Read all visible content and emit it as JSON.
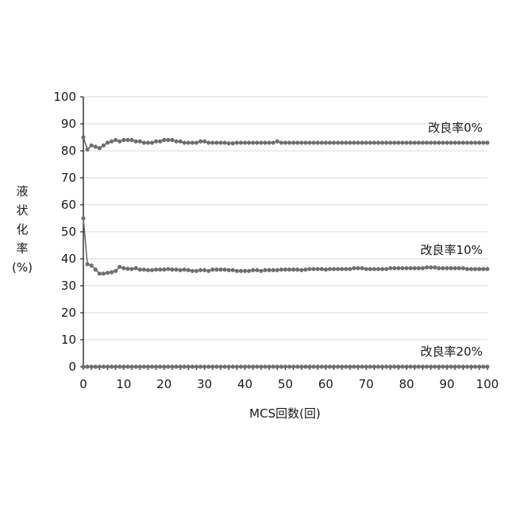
{
  "chart_data": {
    "type": "line",
    "xlabel": "MCS回数(回)",
    "ylabel": "液状化率(%)",
    "ylabel_lines": [
      "液",
      "状",
      "化",
      "率",
      "(%)"
    ],
    "xlim": [
      0,
      100
    ],
    "ylim": [
      0,
      100
    ],
    "x_ticks": [
      0,
      10,
      20,
      30,
      40,
      50,
      60,
      70,
      80,
      90,
      100
    ],
    "y_ticks": [
      0,
      10,
      20,
      30,
      40,
      50,
      60,
      70,
      80,
      90,
      100
    ],
    "grid": "horizontal",
    "legend": "none",
    "colors": {
      "series": "#6e6e6e",
      "axis": "#000000",
      "grid": "#d9d9d9"
    },
    "series": [
      {
        "name": "改良率0%",
        "values": [
          85,
          80.5,
          82,
          81.5,
          81,
          82,
          83,
          83.5,
          84,
          83.5,
          84,
          84,
          84,
          83.5,
          83.5,
          83,
          83,
          83,
          83.5,
          83.5,
          84,
          84,
          84,
          83.5,
          83.5,
          83,
          83,
          83,
          83,
          83.5,
          83.5,
          83,
          83,
          83,
          83,
          83,
          82.8,
          82.8,
          83,
          83,
          83,
          83,
          83,
          83,
          83,
          83,
          83,
          83,
          83.5,
          83,
          83,
          83,
          83,
          83,
          83,
          83,
          83,
          83,
          83,
          83,
          83,
          83,
          83,
          83,
          83,
          83,
          83,
          83,
          83,
          83,
          83,
          83,
          83,
          83,
          83,
          83,
          83,
          83,
          83,
          83,
          83,
          83,
          83,
          83,
          83,
          83,
          83,
          83,
          83,
          83,
          83,
          83,
          83,
          83,
          83,
          83,
          83,
          83,
          83,
          83,
          83
        ]
      },
      {
        "name": "改良率10%",
        "values": [
          55,
          38,
          37.5,
          36,
          34.5,
          34.5,
          34.8,
          35,
          35.5,
          37,
          36.5,
          36.3,
          36.2,
          36.5,
          36,
          36,
          35.8,
          35.8,
          36,
          36,
          36,
          36.2,
          36,
          36,
          35.8,
          36,
          35.8,
          35.5,
          35.5,
          35.8,
          35.8,
          35.5,
          36,
          36,
          36,
          36,
          35.8,
          35.8,
          35.5,
          35.5,
          35.5,
          35.5,
          35.8,
          35.8,
          35.5,
          35.8,
          35.8,
          35.8,
          35.8,
          36,
          36,
          36,
          36,
          36,
          35.8,
          36,
          36.2,
          36.2,
          36.2,
          36.2,
          36,
          36.2,
          36.2,
          36.2,
          36.2,
          36.2,
          36.2,
          36.5,
          36.5,
          36.5,
          36.2,
          36.2,
          36.2,
          36.2,
          36.2,
          36.2,
          36.5,
          36.5,
          36.5,
          36.5,
          36.5,
          36.5,
          36.5,
          36.5,
          36.5,
          36.8,
          36.8,
          36.8,
          36.5,
          36.5,
          36.5,
          36.5,
          36.5,
          36.5,
          36.5,
          36.2,
          36.2,
          36.2,
          36.2,
          36.2,
          36.2
        ]
      },
      {
        "name": "改良率20%",
        "values": [
          0,
          0,
          0,
          0,
          0,
          0,
          0,
          0,
          0,
          0,
          0,
          0,
          0,
          0,
          0,
          0,
          0,
          0,
          0,
          0,
          0,
          0,
          0,
          0,
          0,
          0,
          0,
          0,
          0,
          0,
          0,
          0,
          0,
          0,
          0,
          0,
          0,
          0,
          0,
          0,
          0,
          0,
          0,
          0,
          0,
          0,
          0,
          0,
          0,
          0,
          0,
          0,
          0,
          0,
          0,
          0,
          0,
          0,
          0,
          0,
          0,
          0,
          0,
          0,
          0,
          0,
          0,
          0,
          0,
          0,
          0,
          0,
          0,
          0,
          0,
          0,
          0,
          0,
          0,
          0,
          0,
          0,
          0,
          0,
          0,
          0,
          0,
          0,
          0,
          0,
          0,
          0,
          0,
          0,
          0,
          0,
          0,
          0,
          0,
          0,
          0
        ]
      }
    ]
  }
}
